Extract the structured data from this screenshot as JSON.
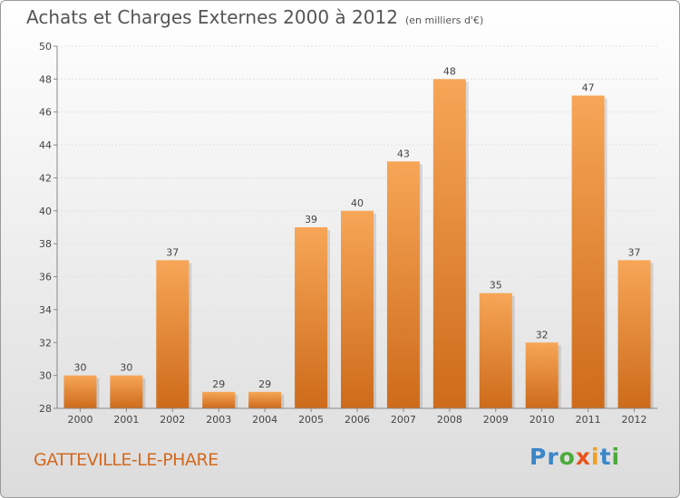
{
  "title": "Achats et Charges Externes 2000 à 2012",
  "subtitle": "(en milliers d'€)",
  "commune": "GATTEVILLE-LE-PHARE",
  "logo": {
    "letters": [
      "P",
      "r",
      "o",
      "x",
      "i",
      "t",
      "i"
    ],
    "colors": [
      "#3a86c8",
      "#3a86c8",
      "#4aaa3a",
      "#e8541c",
      "#f0a020",
      "#3a86c8",
      "#4aaa3a"
    ]
  },
  "colors": {
    "bar_top": "#f7a657",
    "bar_bottom": "#cd6b1a",
    "text": "#555555",
    "commune": "#d2691e"
  },
  "chart_data": {
    "type": "bar",
    "categories": [
      "2000",
      "2001",
      "2002",
      "2003",
      "2004",
      "2005",
      "2006",
      "2007",
      "2008",
      "2009",
      "2010",
      "2011",
      "2012"
    ],
    "values": [
      30,
      30,
      37,
      29,
      29,
      39,
      40,
      43,
      48,
      35,
      32,
      47,
      37
    ],
    "ylim": [
      28,
      50
    ],
    "yticks": [
      28,
      30,
      32,
      34,
      36,
      38,
      40,
      42,
      44,
      46,
      48,
      50
    ],
    "grid": true
  }
}
